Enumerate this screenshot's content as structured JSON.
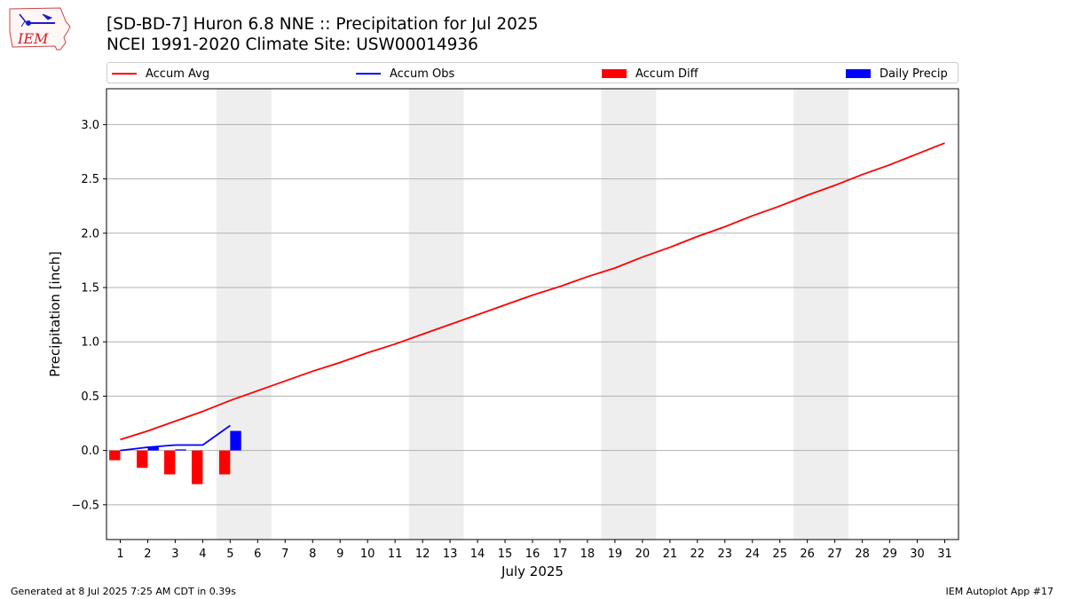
{
  "header": {
    "title_line1": "[SD-BD-7] Huron 6.8 NNE :: Precipitation for Jul 2025",
    "title_line2": "NCEI 1991-2020 Climate Site: USW00014936",
    "logo_text": "IEM"
  },
  "footer": {
    "generated": "Generated at 8 Jul 2025 7:25 AM CDT in 0.39s",
    "app": "IEM Autoplot App #17"
  },
  "legend": {
    "position": "top",
    "items": [
      {
        "label": "Accum Avg",
        "kind": "line",
        "color": "#ff0000"
      },
      {
        "label": "Accum Obs",
        "kind": "line",
        "color": "#0000ff"
      },
      {
        "label": "Accum Diff",
        "kind": "bar",
        "color": "#ff0000"
      },
      {
        "label": "Daily Precip",
        "kind": "bar",
        "color": "#0000ff"
      }
    ]
  },
  "chart_data": {
    "type": "line",
    "xlabel": "July 2025",
    "ylabel": "Precipitation [inch]",
    "x": [
      1,
      2,
      3,
      4,
      5,
      6,
      7,
      8,
      9,
      10,
      11,
      12,
      13,
      14,
      15,
      16,
      17,
      18,
      19,
      20,
      21,
      22,
      23,
      24,
      25,
      26,
      27,
      28,
      29,
      30,
      31
    ],
    "xlim": [
      0.5,
      31.5
    ],
    "ylim": [
      -0.82,
      3.33
    ],
    "yticks": [
      -0.5,
      0.0,
      0.5,
      1.0,
      1.5,
      2.0,
      2.5,
      3.0
    ],
    "grid": "horizontal",
    "weekend_shading": [
      [
        5,
        6
      ],
      [
        12,
        13
      ],
      [
        19,
        20
      ],
      [
        26,
        27
      ]
    ],
    "series": [
      {
        "name": "Accum Avg",
        "kind": "line",
        "color": "#ff0000",
        "x": [
          1,
          2,
          3,
          4,
          5,
          6,
          7,
          8,
          9,
          10,
          11,
          12,
          13,
          14,
          15,
          16,
          17,
          18,
          19,
          20,
          21,
          22,
          23,
          24,
          25,
          26,
          27,
          28,
          29,
          30,
          31
        ],
        "values": [
          0.1,
          0.18,
          0.27,
          0.36,
          0.46,
          0.55,
          0.64,
          0.73,
          0.81,
          0.9,
          0.98,
          1.07,
          1.16,
          1.25,
          1.34,
          1.43,
          1.51,
          1.6,
          1.68,
          1.78,
          1.87,
          1.97,
          2.06,
          2.16,
          2.25,
          2.35,
          2.44,
          2.54,
          2.63,
          2.73,
          2.83
        ]
      },
      {
        "name": "Accum Obs",
        "kind": "line",
        "color": "#0000ff",
        "x": [
          1,
          2,
          3,
          4,
          5
        ],
        "values": [
          0.0,
          0.03,
          0.05,
          0.05,
          0.23
        ]
      },
      {
        "name": "Accum Diff",
        "kind": "bar",
        "color": "#ff0000",
        "offset": -0.2,
        "x": [
          1,
          2,
          3,
          4,
          5
        ],
        "values": [
          -0.09,
          -0.16,
          -0.22,
          -0.31,
          -0.22
        ]
      },
      {
        "name": "Daily Precip",
        "kind": "bar",
        "color": "#0000ff",
        "offset": 0.2,
        "x": [
          1,
          2,
          3,
          4,
          5
        ],
        "values": [
          0.0,
          0.03,
          0.01,
          0.0,
          0.18
        ]
      }
    ]
  }
}
